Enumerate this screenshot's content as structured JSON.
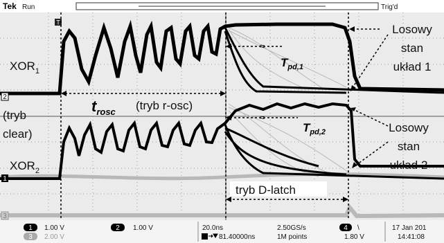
{
  "header": {
    "brand": "Tek",
    "status": "Run",
    "trigger_status": "Trig'd",
    "trigger_marker": "T"
  },
  "channel_markers": [
    "2",
    "1",
    "3"
  ],
  "annotations": {
    "xor1": {
      "base": "XOR",
      "sub": "1"
    },
    "xor2": {
      "base": "XOR",
      "sub": "2"
    },
    "t_rosc": {
      "base": "t",
      "sub": "rosc"
    },
    "mode_rosc": "(tryb r-osc)",
    "mode_clear": [
      "(tryb",
      "clear)"
    ],
    "tpd1": {
      "base": "T",
      "sub": "pd,1"
    },
    "tpd2": {
      "base": "T",
      "sub": "pd,2"
    },
    "random1": [
      "Losowy",
      "stan",
      "układ 1"
    ],
    "random2": [
      "Losowy",
      "stan",
      "układ 2"
    ],
    "mode_dlatch": "tryb D-latch",
    "break_mark": "≈"
  },
  "status_bar": {
    "ch1": {
      "num": "1",
      "scale": "1.00 V"
    },
    "ch2": {
      "num": "2",
      "scale": "1.00 V"
    },
    "ch3": {
      "num": "3",
      "scale": "2.00 V"
    },
    "timebase": "20.0ns",
    "sample_rate": "2.50GS/s",
    "position": "81.40000ns",
    "record": "1M points",
    "trigger": {
      "channel": "4",
      "slope": "\\",
      "level": "1.80 V"
    },
    "date": "17 Jan 201",
    "time": "14:41:08"
  }
}
